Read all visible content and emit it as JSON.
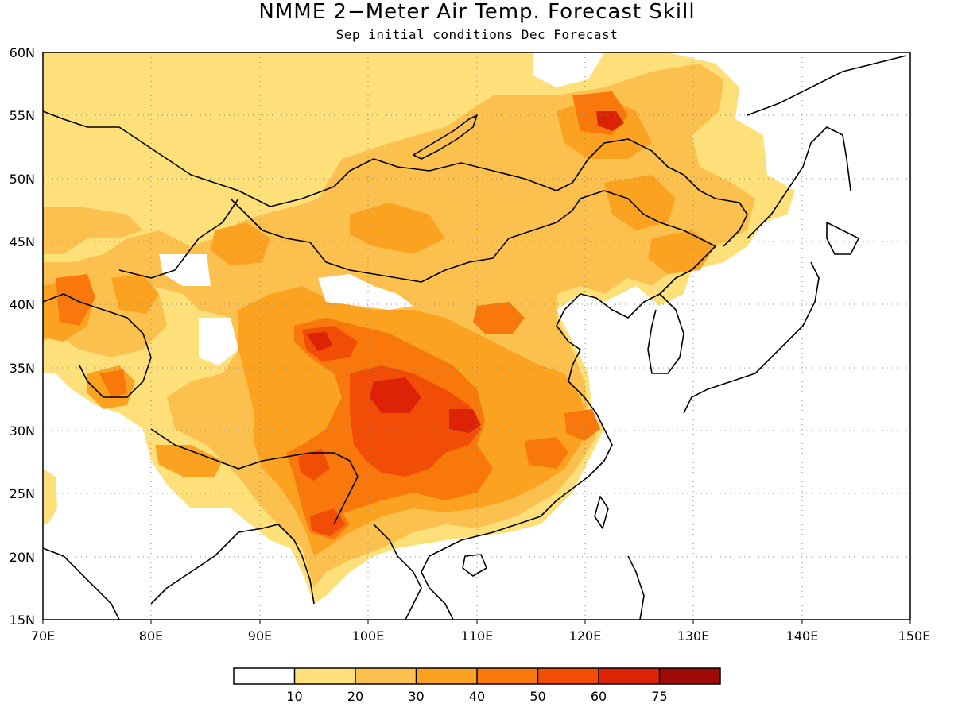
{
  "title": "NMME 2−Meter Air Temp. Forecast Skill",
  "subtitle": "Sep initial conditions  Dec Forecast",
  "map": {
    "lon_range": [
      70,
      150
    ],
    "lat_range": [
      15,
      60
    ],
    "lon_ticks": [
      "70E",
      "80E",
      "90E",
      "100E",
      "110E",
      "120E",
      "130E",
      "140E",
      "150E"
    ],
    "lat_ticks": [
      "15N",
      "20N",
      "25N",
      "30N",
      "35N",
      "40N",
      "45N",
      "50N",
      "55N",
      "60N"
    ],
    "grid": "dotted",
    "land_color": "#ffffff",
    "coast_color": "#000000"
  },
  "colorbar": {
    "bins": [
      {
        "color": "#ffffff",
        "label": ""
      },
      {
        "color": "#fde07a",
        "label": "10"
      },
      {
        "color": "#fcc04f",
        "label": "20"
      },
      {
        "color": "#fba321",
        "label": "30"
      },
      {
        "color": "#f8780c",
        "label": "40"
      },
      {
        "color": "#f24d07",
        "label": "50"
      },
      {
        "color": "#dc2306",
        "label": "60"
      },
      {
        "color": "#a00a04",
        "label": "75"
      }
    ]
  }
}
